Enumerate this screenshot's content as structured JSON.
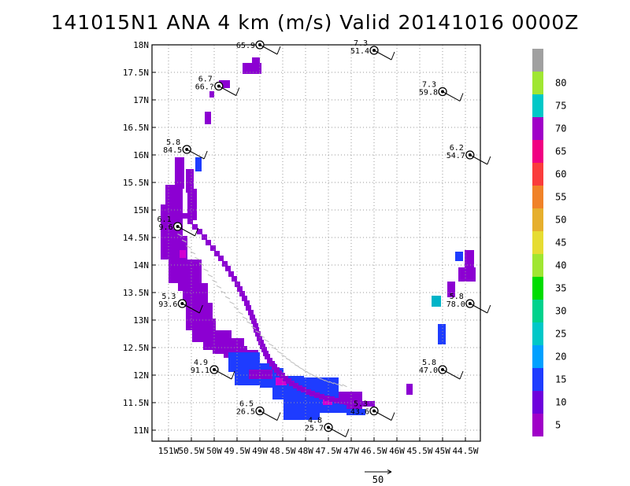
{
  "title": "141015N1 ANA 4 km (m/s) Valid 20141016 0000Z",
  "chart_data": {
    "type": "heatmap",
    "title": "141015N1 ANA 4 km (m/s) Valid 20141016 0000Z",
    "xlabel": "",
    "ylabel": "",
    "xlim": [
      -151.35,
      -44.4
    ],
    "ylim": [
      10.85,
      18.1
    ],
    "grid": true,
    "x_ticks": [
      {
        "v": -151.0,
        "label": "151W"
      },
      {
        "v": -150.5,
        "label": "50.5W"
      },
      {
        "v": -150.0,
        "label": "50W"
      },
      {
        "v": -149.5,
        "label": "49.5W"
      },
      {
        "v": -149.0,
        "label": "49W"
      },
      {
        "v": -148.5,
        "label": "48.5W"
      },
      {
        "v": -148.0,
        "label": "48W"
      },
      {
        "v": -147.5,
        "label": "47.5W"
      },
      {
        "v": -147.0,
        "label": "47W"
      },
      {
        "v": -146.5,
        "label": "46.5W"
      },
      {
        "v": -146.0,
        "label": "46W"
      },
      {
        "v": -145.5,
        "label": "45.5W"
      },
      {
        "v": -145.0,
        "label": "45W"
      },
      {
        "v": -144.5,
        "label": "44.5W"
      }
    ],
    "y_ticks": [
      {
        "v": 11.0,
        "label": "11N"
      },
      {
        "v": 11.5,
        "label": "11.5N"
      },
      {
        "v": 12.0,
        "label": "12N"
      },
      {
        "v": 12.5,
        "label": "12.5N"
      },
      {
        "v": 13.0,
        "label": "13N"
      },
      {
        "v": 13.5,
        "label": "13.5N"
      },
      {
        "v": 14.0,
        "label": "14N"
      },
      {
        "v": 14.5,
        "label": "14.5N"
      },
      {
        "v": 15.0,
        "label": "15N"
      },
      {
        "v": 15.5,
        "label": "15.5N"
      },
      {
        "v": 16.0,
        "label": "16N"
      },
      {
        "v": 16.5,
        "label": "16.5N"
      },
      {
        "v": 17.0,
        "label": "17N"
      },
      {
        "v": 17.5,
        "label": "17.5N"
      },
      {
        "v": 18.0,
        "label": "18N"
      }
    ],
    "colorbar": {
      "labels": [
        "5",
        "10",
        "15",
        "20",
        "25",
        "30",
        "35",
        "40",
        "45",
        "50",
        "55",
        "60",
        "65",
        "70",
        "75",
        "80"
      ],
      "colors": [
        "#a000c8",
        "#6e00dc",
        "#1e3cff",
        "#00a0ff",
        "#00c8c8",
        "#00d28c",
        "#00dc00",
        "#a0e632",
        "#e6dc32",
        "#e6af2d",
        "#f08228",
        "#fa3c3c",
        "#f00082",
        "#a000c8",
        "#00c8c8",
        "#a0e632",
        "#a0a0a0"
      ]
    },
    "stations": [
      {
        "lon": -149.0,
        "lat": 18.0,
        "v1": "",
        "v2": "65.9"
      },
      {
        "lon": -146.5,
        "lat": 17.9,
        "v1": "7.3",
        "v2": "51.4"
      },
      {
        "lon": -149.9,
        "lat": 17.25,
        "v1": "6.7",
        "v2": "66.?"
      },
      {
        "lon": -145.0,
        "lat": 17.15,
        "v1": "7.3",
        "v2": "59.8"
      },
      {
        "lon": -150.6,
        "lat": 16.1,
        "v1": "5.8",
        "v2": "84.5"
      },
      {
        "lon": -144.4,
        "lat": 16.0,
        "v1": "6.2",
        "v2": "54.7"
      },
      {
        "lon": -150.8,
        "lat": 14.7,
        "v1": "6.1",
        "v2": "9.6"
      },
      {
        "lon": -150.7,
        "lat": 13.3,
        "v1": "5.3",
        "v2": "93.6"
      },
      {
        "lon": -144.4,
        "lat": 13.3,
        "v1": "5.8",
        "v2": "78.0"
      },
      {
        "lon": -150.0,
        "lat": 12.1,
        "v1": "4.9",
        "v2": "91.1"
      },
      {
        "lon": -145.0,
        "lat": 12.1,
        "v1": "5.8",
        "v2": "47.0"
      },
      {
        "lon": -146.5,
        "lat": 11.35,
        "v1": "5.3",
        "v2": "43.6"
      },
      {
        "lon": -149.0,
        "lat": 11.35,
        "v1": "6.5",
        "v2": "26.5"
      },
      {
        "lon": -147.5,
        "lat": 11.05,
        "v1": "4.8",
        "v2": "25.7"
      }
    ],
    "reference_vector": {
      "label": "50",
      "value": 50
    }
  },
  "colors": {
    "purple": "#8c00d2",
    "blue": "#1e3cff",
    "magenta": "#d200d2",
    "cyan": "#00b4c8"
  }
}
